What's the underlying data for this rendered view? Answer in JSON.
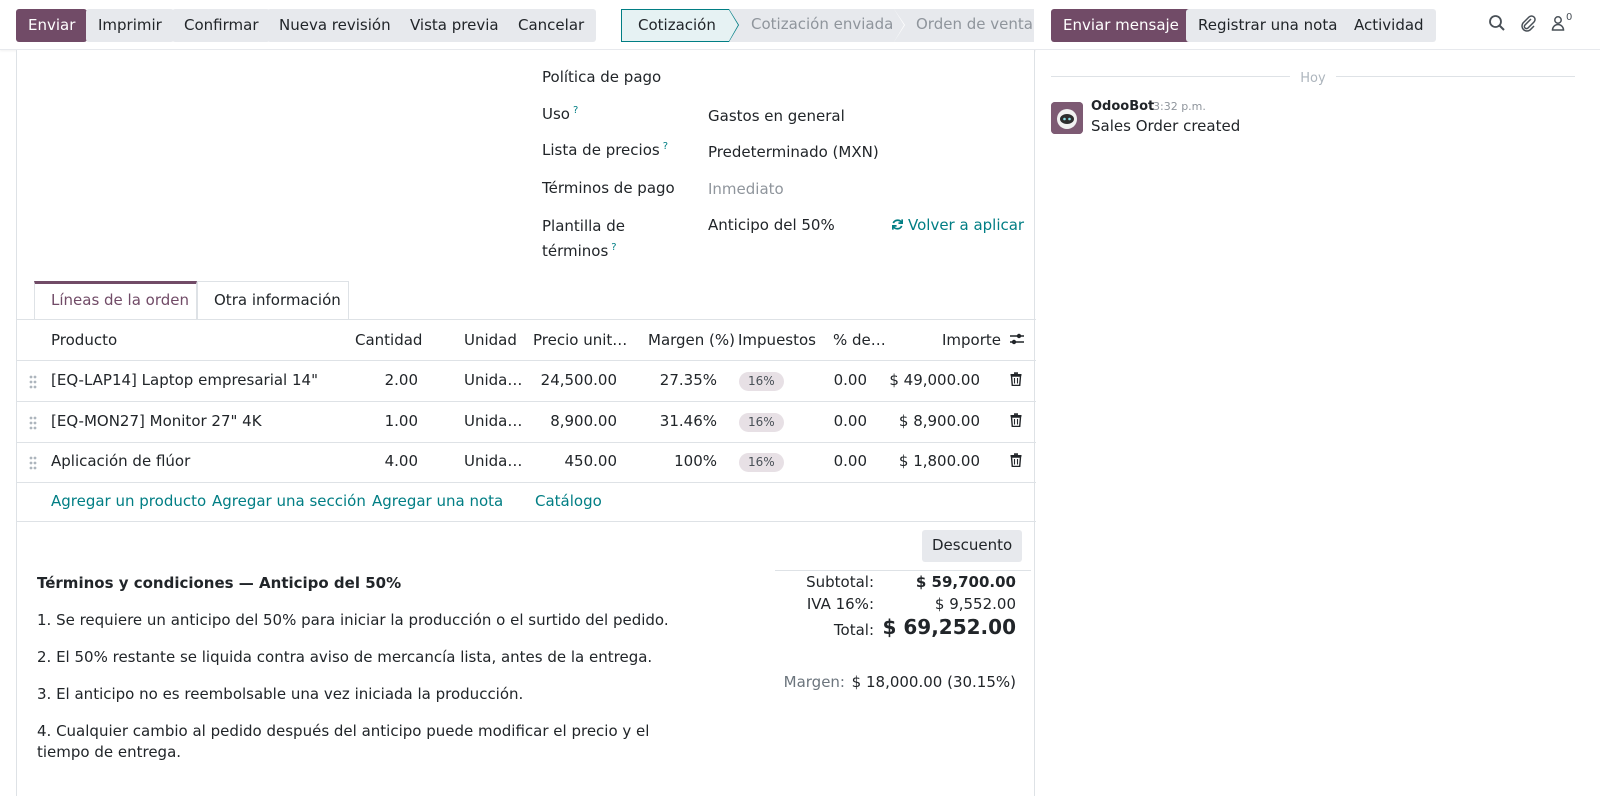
{
  "toolbar": {
    "send": "Enviar",
    "print": "Imprimir",
    "confirm": "Confirmar",
    "new_revision": "Nueva revisión",
    "preview": "Vista previa",
    "cancel": "Cancelar"
  },
  "status_stages": [
    "Cotización",
    "Cotización enviada",
    "Orden de venta"
  ],
  "status_active": "Cotización",
  "chatter_buttons": {
    "send_message": "Enviar mensaje",
    "log_note": "Registrar una nota",
    "activity": "Actividad"
  },
  "followers_count": "0",
  "form": {
    "payment_policy_label": "Política de pago",
    "usage_label": "Uso",
    "usage_value": "Gastos en general",
    "pricelist_label": "Lista de precios",
    "pricelist_value": "Predeterminado (MXN)",
    "payment_terms_label": "Términos de pago",
    "payment_terms_placeholder": "Inmediato",
    "terms_template_label_1": "Plantilla de",
    "terms_template_label_2": "términos",
    "terms_template_value": "Anticipo del 50%",
    "reapply_label": "Volver a aplicar",
    "help_mark": "?"
  },
  "tabs": {
    "order_lines": "Líneas de la orden",
    "other_info": "Otra información"
  },
  "table": {
    "headers": {
      "product": "Producto",
      "quantity": "Cantidad",
      "unit": "Unidad",
      "unit_price": "Precio unit…",
      "margin": "Margen (%)",
      "taxes": "Impuestos",
      "discount": "% de…",
      "amount": "Importe"
    },
    "rows": [
      {
        "product": "[EQ-LAP14] Laptop empresarial 14\"",
        "quantity": "2.00",
        "unit": "Unida…",
        "price": "24,500.00",
        "margin": "27.35%",
        "tax": "16%",
        "discount": "0.00",
        "amount": "$ 49,000.00"
      },
      {
        "product": "[EQ-MON27] Monitor 27\" 4K",
        "quantity": "1.00",
        "unit": "Unida…",
        "price": "8,900.00",
        "margin": "31.46%",
        "tax": "16%",
        "discount": "0.00",
        "amount": "$ 8,900.00"
      },
      {
        "product": "Aplicación de flúor",
        "quantity": "4.00",
        "unit": "Unida…",
        "price": "450.00",
        "margin": "100%",
        "tax": "16%",
        "discount": "0.00",
        "amount": "$ 1,800.00"
      }
    ],
    "add_product": "Agregar un producto",
    "add_section": "Agregar una sección",
    "add_note": "Agregar una nota",
    "catalog": "Catálogo"
  },
  "discount_button": "Descuento",
  "terms": {
    "title": "Términos y condiciones — Anticipo del 50%",
    "p1": "1. Se requiere un anticipo del 50% para iniciar la producción o el surtido del pedido.",
    "p2": "2. El 50% restante se liquida contra aviso de mercancía lista, antes de la entrega.",
    "p3": "3. El anticipo no es reembolsable una vez iniciada la producción.",
    "p4": "4. Cualquier cambio al pedido después del anticipo puede modificar el precio y el tiempo de entrega."
  },
  "totals": {
    "subtotal_label": "Subtotal:",
    "subtotal_value": "$ 59,700.00",
    "tax_label": "IVA 16%:",
    "tax_value": "$ 9,552.00",
    "total_label": "Total:",
    "total_value": "$ 69,252.00",
    "margin_label": "Margen:",
    "margin_value": "$ 18,000.00 (30.15%)"
  },
  "chatter": {
    "today": "Hoy",
    "author": "OdooBot",
    "time": "3:32 p.m.",
    "body": "Sales Order created"
  },
  "colors": {
    "primary": "#714b67",
    "link": "#017e84",
    "border": "#dee2e6"
  }
}
